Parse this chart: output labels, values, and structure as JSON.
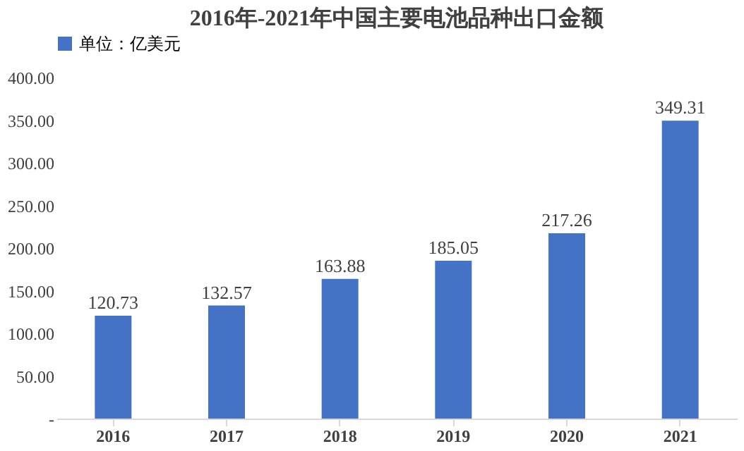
{
  "chart_data": {
    "type": "bar",
    "title": "2016年-2021年中国主要电池品种出口金额",
    "categories": [
      "2016",
      "2017",
      "2018",
      "2019",
      "2020",
      "2021"
    ],
    "series": [
      {
        "name": "单位：亿美元",
        "color": "#4472c4",
        "values": [
          120.73,
          132.57,
          163.88,
          185.05,
          217.26,
          349.31
        ]
      }
    ],
    "ylim": [
      0,
      400
    ],
    "yticks": [
      {
        "value": 0,
        "label": "-"
      },
      {
        "value": 50,
        "label": "50.00"
      },
      {
        "value": 100,
        "label": "100.00"
      },
      {
        "value": 150,
        "label": "150.00"
      },
      {
        "value": 200,
        "label": "200.00"
      },
      {
        "value": 250,
        "label": "250.00"
      },
      {
        "value": 300,
        "label": "300.00"
      },
      {
        "value": 350,
        "label": "350.00"
      },
      {
        "value": 400,
        "label": "400.00"
      }
    ],
    "data_labels": true,
    "legend": "top",
    "grid": false
  }
}
